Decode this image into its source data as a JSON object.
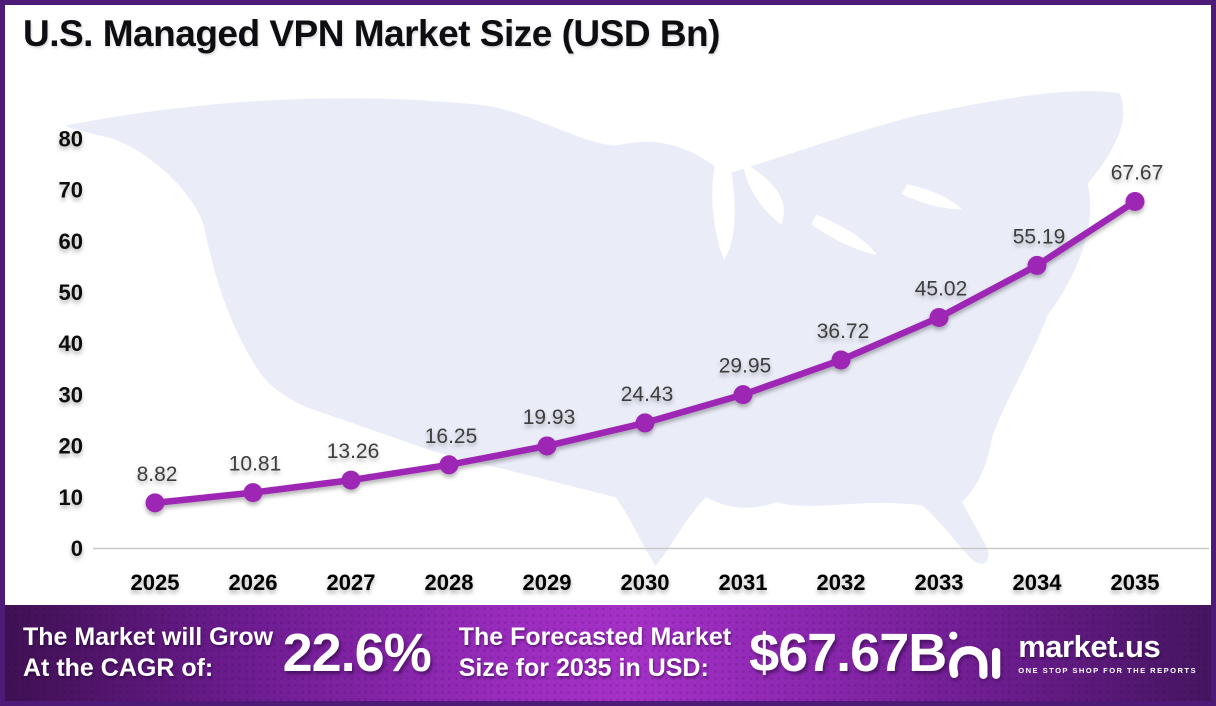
{
  "title": "U.S. Managed VPN Market Size (USD Bn)",
  "chart_data": {
    "type": "line",
    "title": "U.S. Managed VPN Market Size (USD Bn)",
    "categories": [
      "2025",
      "2026",
      "2027",
      "2028",
      "2029",
      "2030",
      "2031",
      "2032",
      "2033",
      "2034",
      "2035"
    ],
    "values": [
      8.82,
      10.81,
      13.26,
      16.25,
      19.93,
      24.43,
      29.95,
      36.72,
      45.02,
      55.19,
      67.67
    ],
    "point_labels": [
      "8.82",
      "10.81",
      "13.26",
      "16.25",
      "19.93",
      "24.43",
      "29.95",
      "36.72",
      "45.02",
      "55.19",
      "67.67"
    ],
    "xlabel": "",
    "ylabel": "",
    "ylim": [
      0,
      80
    ],
    "yticks": [
      0,
      10,
      20,
      30,
      40,
      50,
      60,
      70,
      80
    ],
    "grid": false,
    "legend": "none",
    "line_color": "#9e28b5",
    "point_color": "#9e28b5",
    "label_color": "#3d3d3d",
    "axis_color": "#c9c9c9"
  },
  "colors": {
    "frame_border": "#4e1a78",
    "map_fill": "#eaedf8",
    "footer_gradient_left": "#3f1053",
    "footer_gradient_mid": "#a531c7",
    "footer_gradient_right": "#451560",
    "accent_purple": "#9e28b5"
  },
  "footer": {
    "cagr_label_line1": "The Market will Grow",
    "cagr_label_line2": "At the CAGR of:",
    "cagr_value": "22.6%",
    "forecast_label_line1": "The Forecasted Market",
    "forecast_label_line2": "Size for 2035 in USD:",
    "forecast_value": "$67.67B",
    "brand": {
      "name": "market.us",
      "tagline": "ONE STOP SHOP FOR THE REPORTS"
    }
  }
}
